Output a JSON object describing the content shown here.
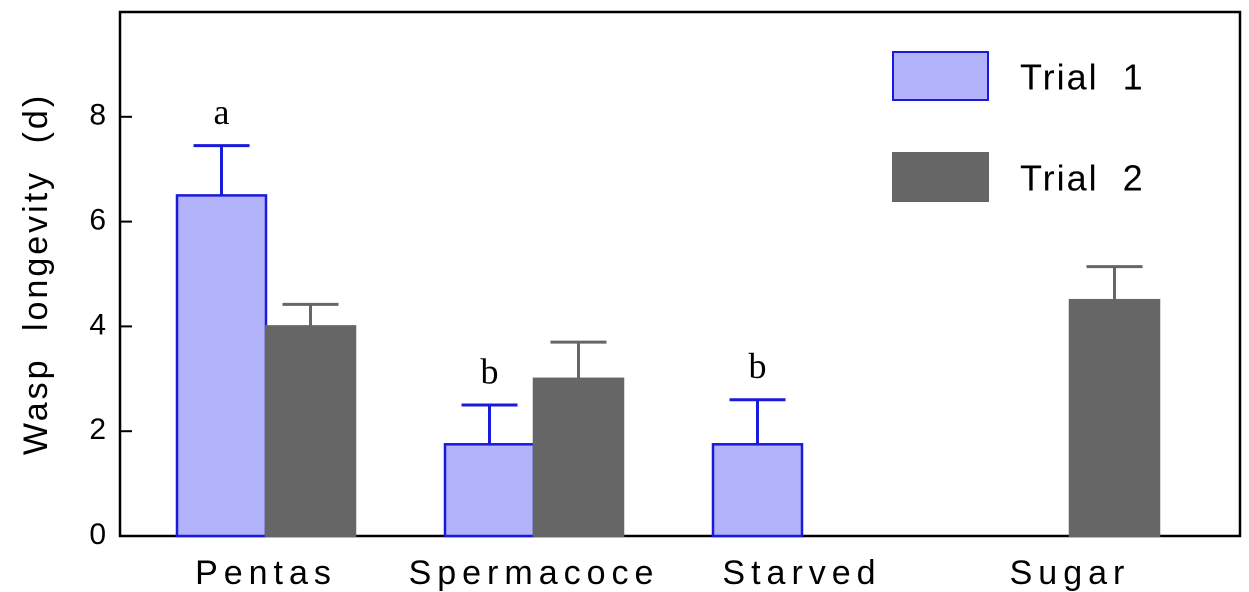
{
  "chart_data": {
    "type": "bar",
    "y_label": "Wasp longevity (d)",
    "categories": [
      "Pentas",
      "Spermacoce",
      "Starved",
      "Sugar"
    ],
    "annotations": [
      "a",
      "b",
      "b",
      null
    ],
    "series": [
      {
        "name": "Trial 1",
        "color": "#b3b3fb",
        "edge": "#1a1adb",
        "values": [
          6.5,
          1.75,
          1.75,
          null
        ],
        "errors": [
          0.95,
          0.75,
          0.85,
          null
        ]
      },
      {
        "name": "Trial 2",
        "color": "#666666",
        "edge": "#666666",
        "values": [
          4.0,
          3.0,
          null,
          4.5
        ],
        "errors": [
          0.42,
          0.7,
          null,
          0.64
        ]
      }
    ],
    "ylim": [
      0,
      10
    ],
    "yticks": [
      0,
      2,
      4,
      6,
      8
    ],
    "grid": false,
    "legend": "upper right"
  }
}
